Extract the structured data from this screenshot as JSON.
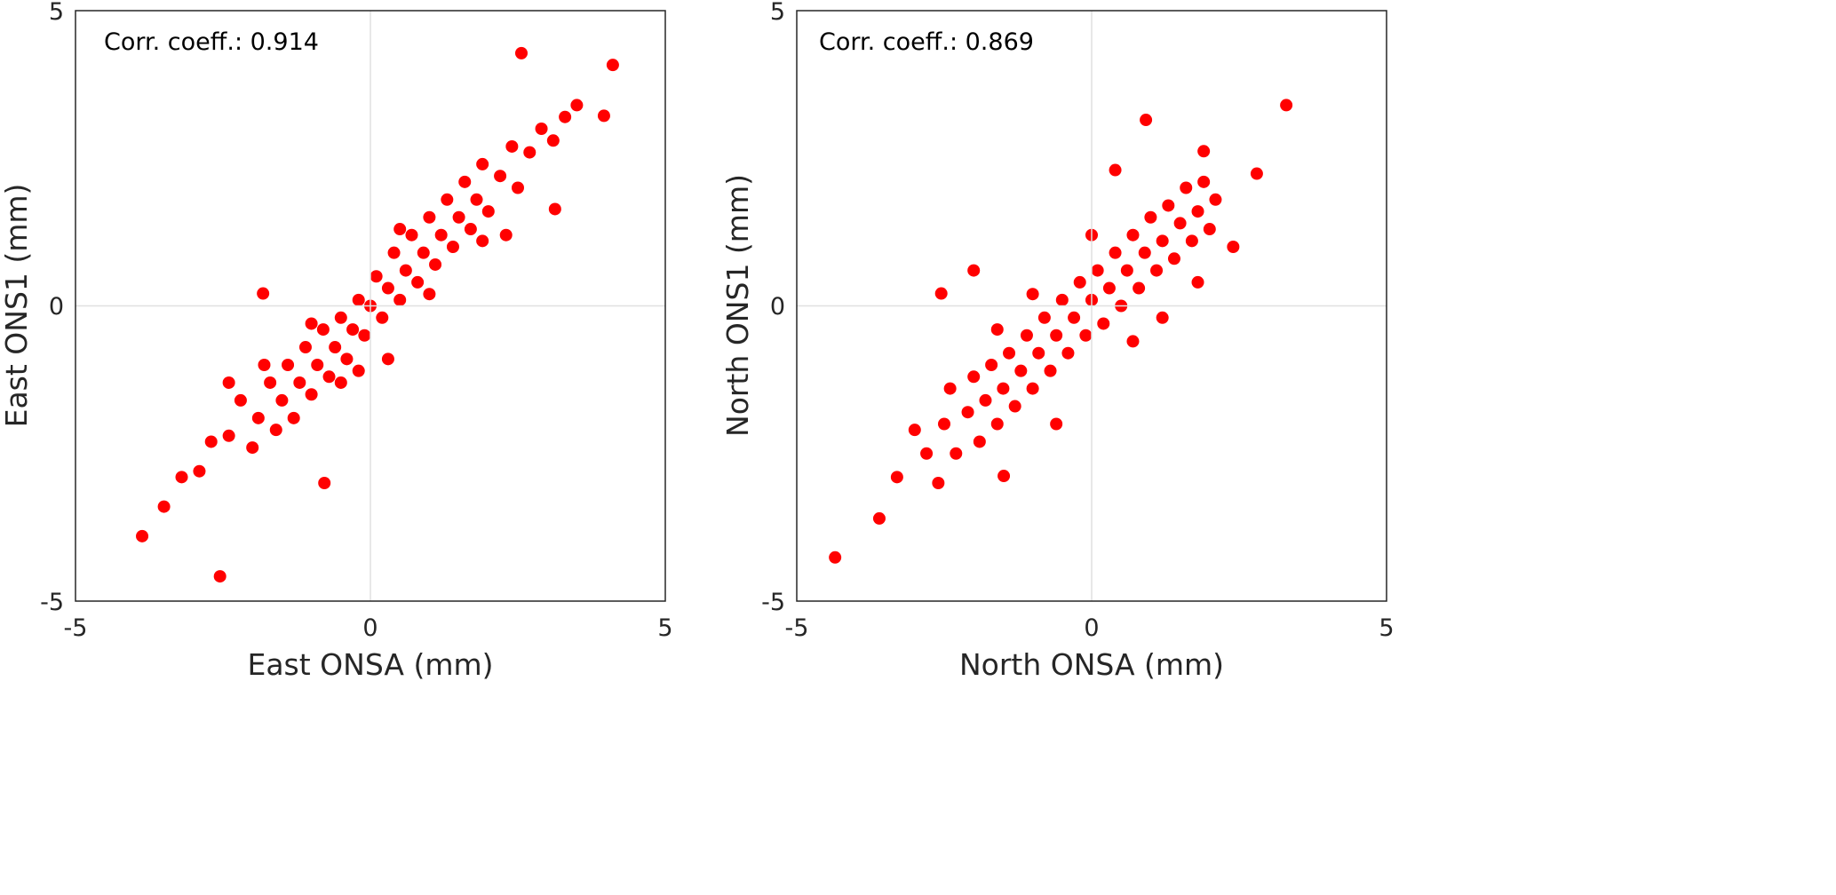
{
  "chart_data": [
    {
      "type": "scatter",
      "xlabel": "East ONSA (mm)",
      "ylabel": "East ONS1 (mm)",
      "annotation": "Corr. coeff.: 0.914",
      "xlim": [
        -5,
        5
      ],
      "ylim": [
        -5,
        5
      ],
      "xticks": [
        "-5",
        "0",
        "5"
      ],
      "yticks": [
        "-5",
        "0",
        "5"
      ],
      "grid": "zero lines only",
      "color": "#ff0000",
      "points": [
        [
          -2.4,
          -2.2
        ],
        [
          -2.2,
          -1.6
        ],
        [
          -2.0,
          -2.4
        ],
        [
          -1.9,
          -1.9
        ],
        [
          -1.7,
          -1.3
        ],
        [
          -1.6,
          -2.1
        ],
        [
          -1.5,
          -1.6
        ],
        [
          -1.4,
          -1.0
        ],
        [
          -1.3,
          -1.9
        ],
        [
          -1.2,
          -1.3
        ],
        [
          -1.1,
          -0.7
        ],
        [
          -1.0,
          -1.5
        ],
        [
          -0.9,
          -1.0
        ],
        [
          -0.8,
          -0.4
        ],
        [
          -0.7,
          -1.2
        ],
        [
          -0.6,
          -0.7
        ],
        [
          -0.5,
          -0.2
        ],
        [
          -0.4,
          -0.9
        ],
        [
          -0.3,
          -0.4
        ],
        [
          -0.2,
          0.1
        ],
        [
          -0.1,
          -0.5
        ],
        [
          0,
          0
        ],
        [
          0.1,
          0.5
        ],
        [
          0.2,
          -0.2
        ],
        [
          0.3,
          0.3
        ],
        [
          0.4,
          0.9
        ],
        [
          0.5,
          0.1
        ],
        [
          0.6,
          0.6
        ],
        [
          0.7,
          1.2
        ],
        [
          0.8,
          0.4
        ],
        [
          0.9,
          0.9
        ],
        [
          1.0,
          1.5
        ],
        [
          1.1,
          0.7
        ],
        [
          1.2,
          1.2
        ],
        [
          1.3,
          1.8
        ],
        [
          1.4,
          1.0
        ],
        [
          1.5,
          1.5
        ],
        [
          1.6,
          2.1
        ],
        [
          1.7,
          1.3
        ],
        [
          1.8,
          1.8
        ],
        [
          1.9,
          2.4
        ],
        [
          2.0,
          1.6
        ],
        [
          2.2,
          2.2
        ],
        [
          2.4,
          2.7
        ],
        [
          2.5,
          2.0
        ],
        [
          2.7,
          2.6
        ],
        [
          2.9,
          3.0
        ],
        [
          3.1,
          2.8
        ],
        [
          3.3,
          3.2
        ],
        [
          3.5,
          3.4
        ],
        [
          -2.9,
          -2.8
        ],
        [
          -3.2,
          -2.9
        ],
        [
          -3.5,
          -3.4
        ],
        [
          -2.7,
          -2.3
        ],
        [
          -0.5,
          -1.3
        ],
        [
          1.0,
          0.2
        ],
        [
          -1.0,
          -0.3
        ],
        [
          0.5,
          1.3
        ],
        [
          -1.8,
          -1.0
        ],
        [
          1.9,
          1.1
        ],
        [
          -3.87,
          -3.9
        ],
        [
          -2.55,
          -4.58
        ],
        [
          2.56,
          4.28
        ],
        [
          4.11,
          4.08
        ],
        [
          -0.78,
          -3.0
        ],
        [
          -1.82,
          0.21
        ],
        [
          3.13,
          1.64
        ],
        [
          3.96,
          3.22
        ],
        [
          -0.2,
          -1.1
        ],
        [
          0.3,
          -0.9
        ],
        [
          -2.4,
          -1.3
        ],
        [
          2.3,
          1.2
        ]
      ]
    },
    {
      "type": "scatter",
      "xlabel": "North ONSA (mm)",
      "ylabel": "North ONS1 (mm)",
      "annotation": "Corr. coeff.: 0.869",
      "xlim": [
        -5,
        5
      ],
      "ylim": [
        -5,
        5
      ],
      "xticks": [
        "-5",
        "0",
        "5"
      ],
      "yticks": [
        "-5",
        "0",
        "5"
      ],
      "grid": "zero lines only",
      "color": "#ff0000",
      "points": [
        [
          -2.5,
          -2.0
        ],
        [
          -2.4,
          -1.4
        ],
        [
          -2.3,
          -2.5
        ],
        [
          -2.1,
          -1.8
        ],
        [
          -2.0,
          -1.2
        ],
        [
          -1.9,
          -2.3
        ],
        [
          -1.8,
          -1.6
        ],
        [
          -1.7,
          -1.0
        ],
        [
          -1.6,
          -2.0
        ],
        [
          -1.5,
          -1.4
        ],
        [
          -1.4,
          -0.8
        ],
        [
          -1.3,
          -1.7
        ],
        [
          -1.2,
          -1.1
        ],
        [
          -1.1,
          -0.5
        ],
        [
          -1.0,
          -1.4
        ],
        [
          -0.9,
          -0.8
        ],
        [
          -0.8,
          -0.2
        ],
        [
          -0.7,
          -1.1
        ],
        [
          -0.6,
          -0.5
        ],
        [
          -0.5,
          0.1
        ],
        [
          -0.4,
          -0.8
        ],
        [
          -0.3,
          -0.2
        ],
        [
          -0.2,
          0.4
        ],
        [
          -0.1,
          -0.5
        ],
        [
          0,
          0.1
        ],
        [
          0.1,
          0.6
        ],
        [
          0.2,
          -0.3
        ],
        [
          0.3,
          0.3
        ],
        [
          0.4,
          0.9
        ],
        [
          0.5,
          0
        ],
        [
          0.6,
          0.6
        ],
        [
          0.7,
          1.2
        ],
        [
          0.8,
          0.3
        ],
        [
          0.9,
          0.9
        ],
        [
          1.0,
          1.5
        ],
        [
          1.1,
          0.6
        ],
        [
          1.2,
          1.1
        ],
        [
          1.3,
          1.7
        ],
        [
          1.4,
          0.8
        ],
        [
          1.5,
          1.4
        ],
        [
          1.6,
          2.0
        ],
        [
          1.7,
          1.1
        ],
        [
          1.8,
          1.6
        ],
        [
          1.9,
          2.1
        ],
        [
          2.0,
          1.3
        ],
        [
          2.1,
          1.8
        ],
        [
          -2.8,
          -2.5
        ],
        [
          -3.0,
          -2.1
        ],
        [
          -3.3,
          -2.9
        ],
        [
          -2.6,
          -3.0
        ],
        [
          1.2,
          -0.2
        ],
        [
          0.7,
          -0.6
        ],
        [
          -1.0,
          0.2
        ],
        [
          0.0,
          1.2
        ],
        [
          -1.6,
          -0.4
        ],
        [
          1.8,
          0.4
        ],
        [
          -4.35,
          -4.26
        ],
        [
          3.3,
          3.4
        ],
        [
          0.92,
          3.15
        ],
        [
          -2.55,
          0.21
        ],
        [
          -1.49,
          -2.88
        ],
        [
          1.9,
          2.62
        ],
        [
          2.8,
          2.24
        ],
        [
          -3.6,
          -3.6
        ],
        [
          -2.0,
          0.6
        ],
        [
          2.4,
          1.0
        ],
        [
          -0.6,
          -2.0
        ],
        [
          0.4,
          2.3
        ]
      ]
    }
  ]
}
